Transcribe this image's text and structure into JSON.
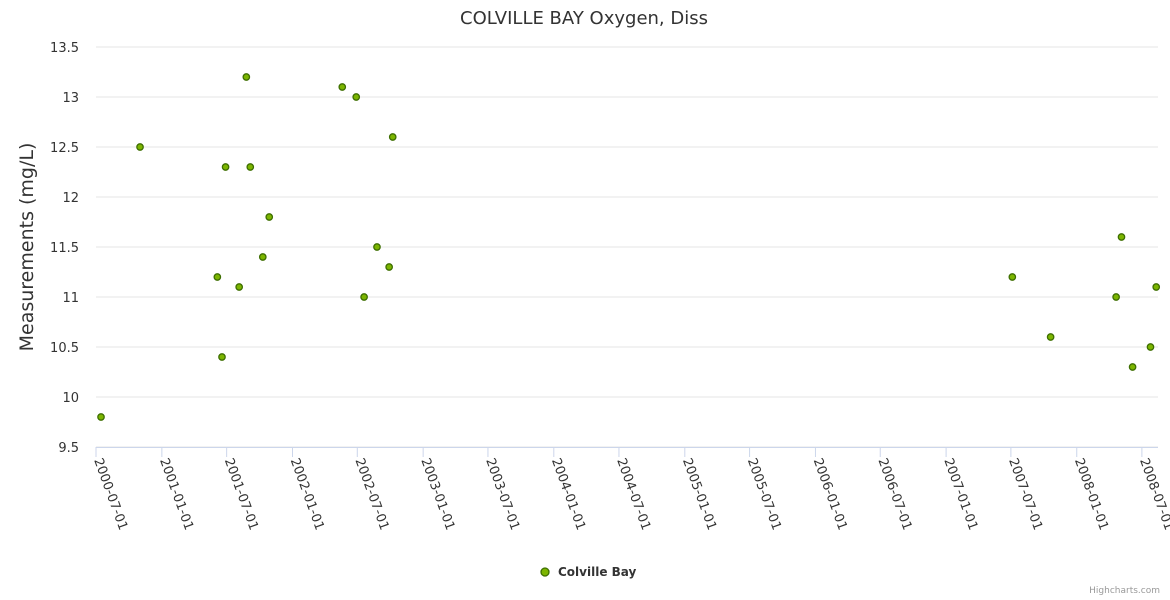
{
  "chart_data": {
    "type": "scatter",
    "title": "COLVILLE BAY Oxygen, Diss",
    "xlabel": "",
    "ylabel": "Measurements (mg/L)",
    "ylim": [
      9.5,
      13.5
    ],
    "yticks": [
      "9.5",
      "10",
      "10.5",
      "11",
      "11.5",
      "12",
      "12.5",
      "13",
      "13.5"
    ],
    "xlim": [
      "2000-07-01",
      "2008-08-15"
    ],
    "xticks": [
      "2000-07-01",
      "2001-01-01",
      "2001-07-01",
      "2002-01-01",
      "2002-07-01",
      "2003-01-01",
      "2003-07-01",
      "2004-01-01",
      "2004-07-01",
      "2005-01-01",
      "2005-07-01",
      "2006-01-01",
      "2006-07-01",
      "2007-01-01",
      "2007-07-01",
      "2008-01-01",
      "2008-07-01"
    ],
    "grid": true,
    "legend_position": "bottom-center",
    "series": [
      {
        "name": "Colville Bay",
        "color": "#7cb500",
        "points": [
          {
            "x": "2000-07-15",
            "y": 9.8
          },
          {
            "x": "2000-11-01",
            "y": 12.5
          },
          {
            "x": "2001-06-05",
            "y": 11.2
          },
          {
            "x": "2001-06-18",
            "y": 10.4
          },
          {
            "x": "2001-06-28",
            "y": 12.3
          },
          {
            "x": "2001-08-05",
            "y": 11.1
          },
          {
            "x": "2001-08-25",
            "y": 13.2
          },
          {
            "x": "2001-09-05",
            "y": 12.3
          },
          {
            "x": "2001-10-10",
            "y": 11.4
          },
          {
            "x": "2001-10-28",
            "y": 11.8
          },
          {
            "x": "2002-05-20",
            "y": 13.1
          },
          {
            "x": "2002-06-28",
            "y": 13.0
          },
          {
            "x": "2002-07-20",
            "y": 11.0
          },
          {
            "x": "2002-08-25",
            "y": 11.5
          },
          {
            "x": "2002-09-28",
            "y": 11.3
          },
          {
            "x": "2002-10-08",
            "y": 12.6
          },
          {
            "x": "2007-07-05",
            "y": 11.2
          },
          {
            "x": "2007-10-20",
            "y": 10.6
          },
          {
            "x": "2008-04-20",
            "y": 11.0
          },
          {
            "x": "2008-05-05",
            "y": 11.6
          },
          {
            "x": "2008-06-05",
            "y": 10.3
          },
          {
            "x": "2008-07-25",
            "y": 10.5
          },
          {
            "x": "2008-08-10",
            "y": 11.1
          }
        ]
      }
    ]
  },
  "credits": "Highcharts.com"
}
